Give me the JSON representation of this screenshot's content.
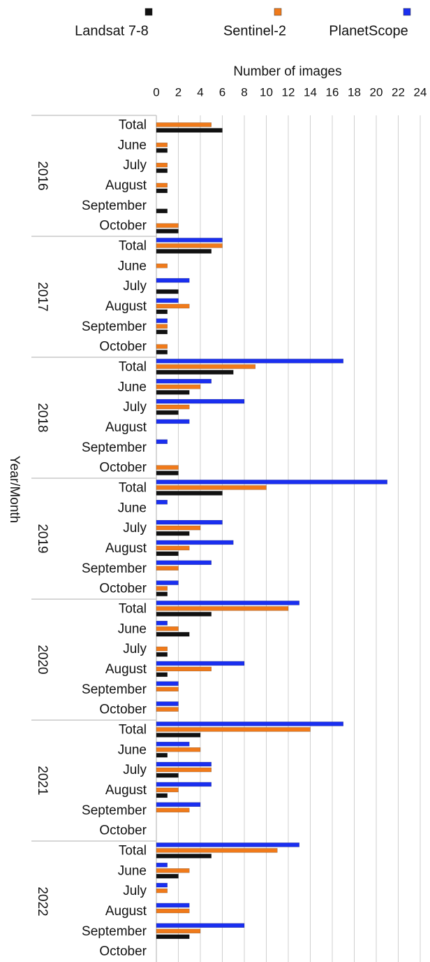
{
  "chart_data": {
    "type": "bar",
    "orientation": "horizontal",
    "x_label": "Number of images",
    "y_label": "Year/Month",
    "groups": [
      "2016",
      "2017",
      "2018",
      "2019",
      "2020",
      "2021",
      "2022"
    ],
    "categories": [
      "Total",
      "June",
      "July",
      "August",
      "September",
      "October",
      "Total",
      "June",
      "July",
      "August",
      "September",
      "October",
      "Total",
      "June",
      "July",
      "August",
      "September",
      "October",
      "Total",
      "June",
      "July",
      "August",
      "September",
      "October",
      "Total",
      "June",
      "July",
      "August",
      "September",
      "October",
      "Total",
      "June",
      "July",
      "August",
      "September",
      "October",
      "Total",
      "June",
      "July",
      "August",
      "September",
      "October"
    ],
    "series": [
      {
        "name": "Landsat 7-8",
        "color": "#111111",
        "values": [
          6,
          1,
          1,
          1,
          1,
          2,
          5,
          0,
          2,
          1,
          1,
          1,
          7,
          3,
          2,
          0,
          0,
          2,
          6,
          0,
          3,
          2,
          0,
          1,
          5,
          3,
          1,
          1,
          0,
          0,
          4,
          1,
          2,
          1,
          0,
          0,
          5,
          2,
          0,
          0,
          3,
          0
        ]
      },
      {
        "name": "Sentinel-2",
        "color": "#f07a1a",
        "values": [
          5,
          1,
          1,
          1,
          0,
          2,
          6,
          1,
          0,
          3,
          1,
          1,
          9,
          4,
          3,
          0,
          0,
          2,
          10,
          0,
          4,
          3,
          2,
          1,
          12,
          2,
          1,
          5,
          2,
          2,
          14,
          4,
          5,
          2,
          3,
          0,
          11,
          3,
          1,
          3,
          4,
          0
        ]
      },
      {
        "name": "PlanetScope",
        "color": "#1a2ff0",
        "values": [
          0,
          0,
          0,
          0,
          0,
          0,
          6,
          0,
          3,
          2,
          1,
          0,
          17,
          5,
          8,
          3,
          1,
          0,
          21,
          1,
          6,
          7,
          5,
          2,
          13,
          1,
          0,
          8,
          2,
          2,
          17,
          3,
          5,
          5,
          4,
          0,
          13,
          1,
          1,
          3,
          8,
          0
        ]
      }
    ],
    "xlim": [
      0,
      24
    ],
    "xticks": [
      0,
      2,
      4,
      6,
      8,
      10,
      12,
      14,
      16,
      18,
      20,
      22,
      24
    ],
    "grid": true
  }
}
